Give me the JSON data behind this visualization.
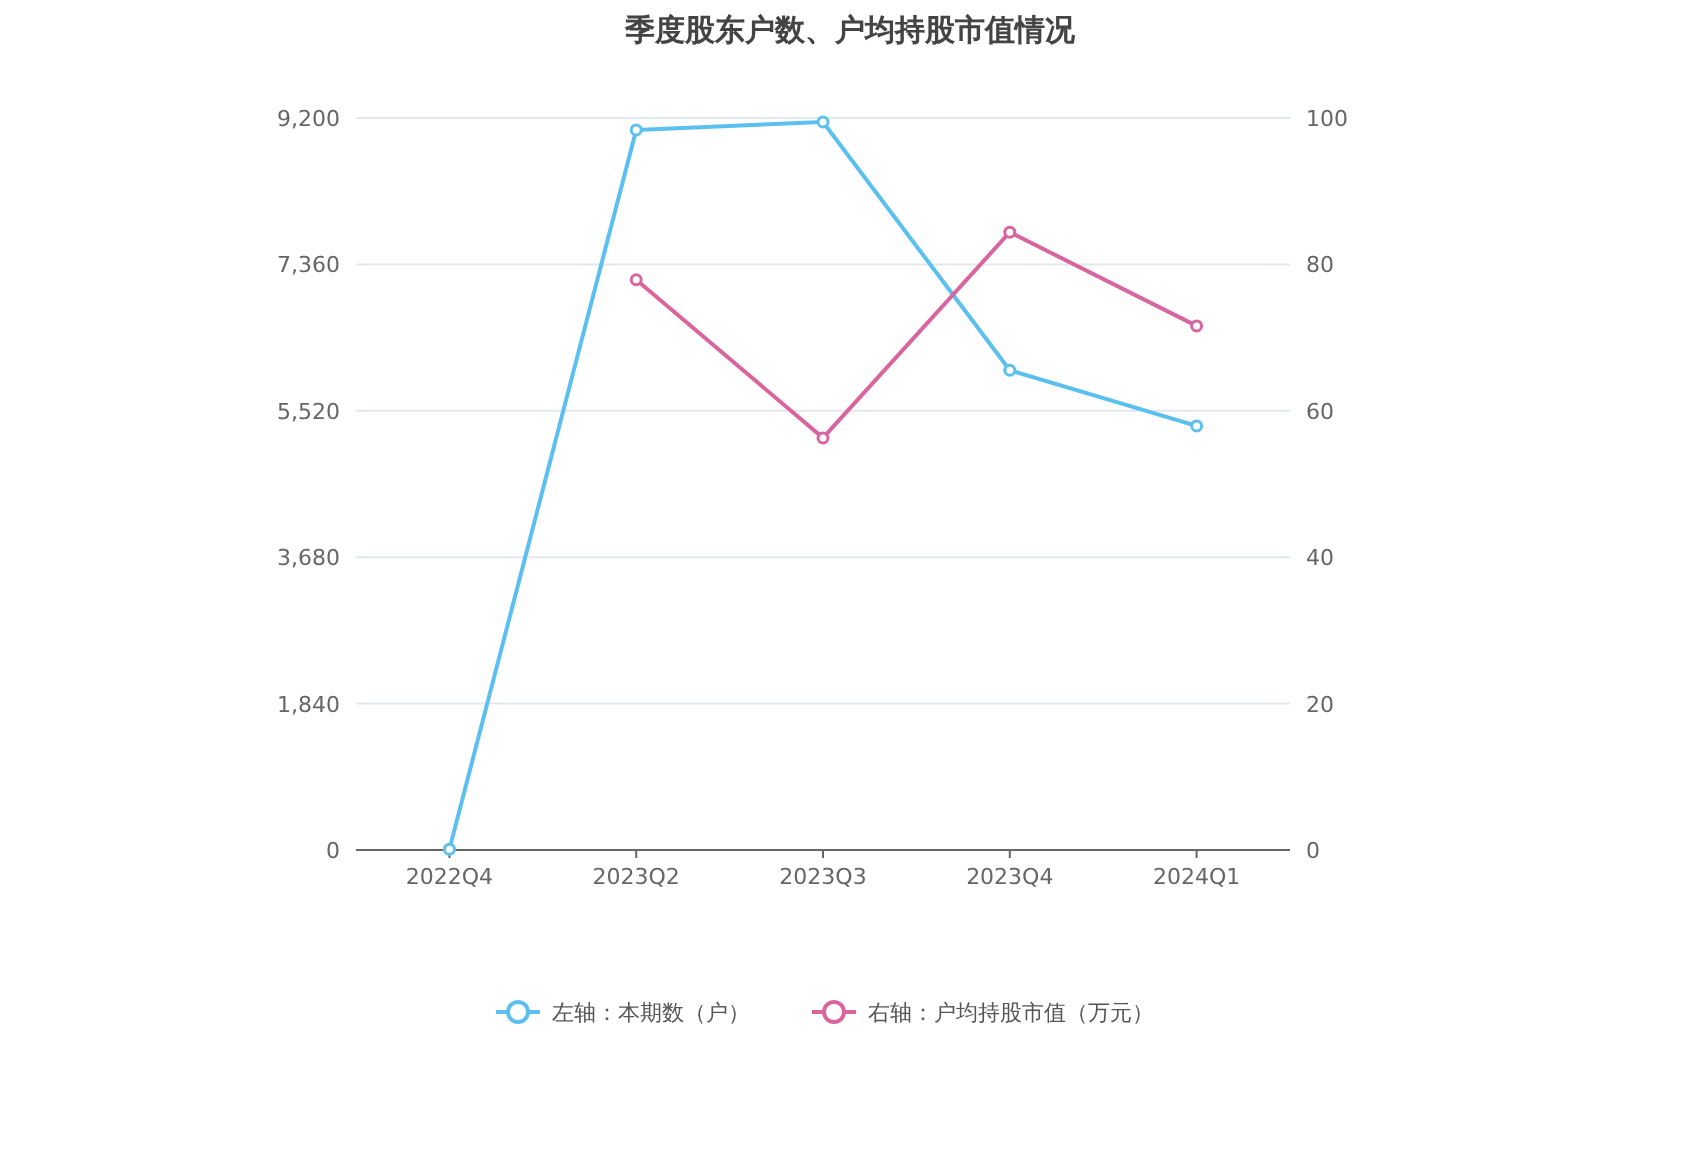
{
  "chart_data": {
    "type": "line",
    "title": "季度股东户数、户均持股市值情况",
    "categories": [
      "2022Q4",
      "2023Q2",
      "2023Q3",
      "2023Q4",
      "2024Q1"
    ],
    "series": [
      {
        "name": "左轴：本期数（户）",
        "color": "#5bc0f0",
        "values": [
          10,
          9050,
          9150,
          6030,
          5330
        ]
      },
      {
        "name": "右轴：户均持股市值（万元）",
        "color": "#d9659f",
        "axis": "y2",
        "values": [
          null,
          77.9,
          56.3,
          84.4,
          71.6
        ]
      }
    ],
    "ylim": [
      0,
      9200
    ],
    "yticks": [
      0,
      {
        "value": 1840,
        "label": "1,840"
      },
      {
        "value": 3680,
        "label": "3,680"
      },
      {
        "value": 5520,
        "label": "5,520"
      },
      {
        "value": 7360,
        "label": "7,360"
      },
      {
        "value": 9200,
        "label": "9,200"
      }
    ],
    "y2lim": [
      0,
      100
    ],
    "y2ticks": [
      0,
      20,
      40,
      60,
      80,
      100
    ],
    "grid": "y",
    "legend": "bottom",
    "marker": "circle"
  }
}
